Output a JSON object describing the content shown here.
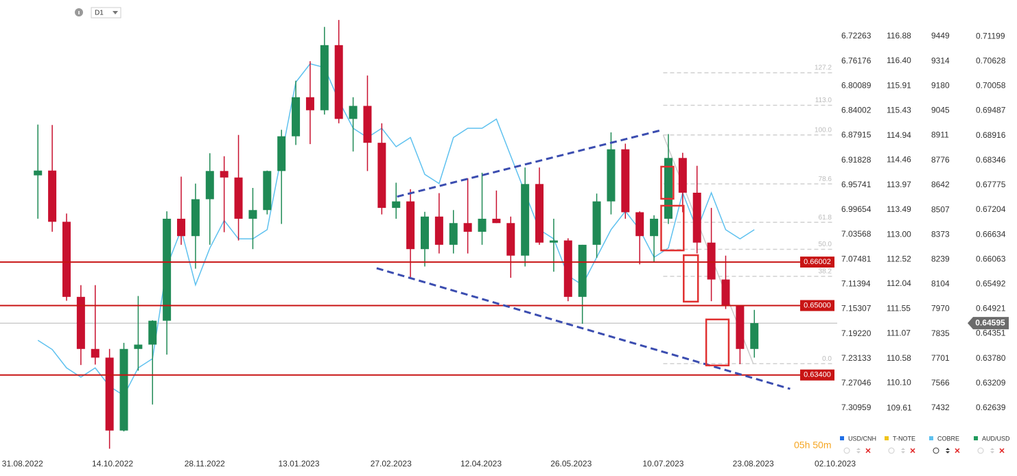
{
  "chart_data": {
    "type": "candlestick",
    "timeframe": "D1",
    "timer": "05h 50m",
    "xlim": [
      "20.08.2022",
      "03.10.2023"
    ],
    "xticks": [
      "31.08.2022",
      "14.10.2022",
      "28.11.2022",
      "13.01.2023",
      "27.02.2023",
      "12.04.2023",
      "26.05.2023",
      "10.07.2023",
      "23.08.2023",
      "02.10.2023"
    ],
    "x": [
      "05.09.2022",
      "12.09.2022",
      "19.09.2022",
      "26.09.2022",
      "03.10.2022",
      "10.10.2022",
      "17.10.2022",
      "24.10.2022",
      "31.10.2022",
      "07.11.2022",
      "14.11.2022",
      "21.11.2022",
      "28.11.2022",
      "05.12.2022",
      "12.12.2022",
      "19.12.2022",
      "26.12.2022",
      "02.01.2023",
      "09.01.2023",
      "16.01.2023",
      "23.01.2023",
      "30.01.2023",
      "06.02.2023",
      "13.02.2023",
      "20.02.2023",
      "27.02.2023",
      "06.03.2023",
      "13.03.2023",
      "20.03.2023",
      "27.03.2023",
      "03.04.2023",
      "10.04.2023",
      "17.04.2023",
      "24.04.2023",
      "01.05.2023",
      "08.05.2023",
      "15.05.2023",
      "22.05.2023",
      "29.05.2023",
      "05.06.2023",
      "12.06.2023",
      "19.06.2023",
      "26.06.2023",
      "03.07.2023",
      "10.07.2023",
      "17.07.2023",
      "24.07.2023",
      "31.07.2023",
      "07.08.2023",
      "14.08.2023",
      "21.08.2023"
    ],
    "axes": [
      {
        "name": "USD/CNH",
        "color": "#1f6fe6",
        "ylim": [
          6.6652,
          7.38
        ],
        "yticks": [
          6.72263,
          6.76176,
          6.80089,
          6.84002,
          6.87915,
          6.91828,
          6.95741,
          6.99654,
          7.03568,
          7.07481,
          7.11394,
          7.15307,
          {
            "value": 7.1922,
            "label": "7.19220"
          },
          7.23133,
          7.27046,
          7.30959
        ]
      },
      {
        "name": "T-NOTE",
        "color": "#f0c419",
        "ylim": [
          117.59,
          108.74
        ],
        "yticks": [
          116.88,
          {
            "value": 116.4,
            "label": "116.40"
          },
          115.91,
          115.43,
          114.94,
          114.46,
          113.97,
          113.49,
          {
            "value": 113,
            "label": "113.00"
          },
          112.52,
          112.04,
          111.55,
          111.07,
          110.58,
          {
            "value": 110.1,
            "label": "110.10"
          },
          109.61
        ]
      },
      {
        "name": "COBRE",
        "color": "#5ec1ef",
        "ylim": [
          9646,
          7190
        ],
        "yticks": [
          9449,
          9314,
          9180,
          9045,
          8911,
          8776,
          8642,
          8507,
          8373,
          8239,
          8104,
          7970,
          7835,
          7701,
          7566,
          7432
        ],
        "values": [
          7800,
          7750,
          7650,
          7600,
          7650,
          7550,
          7500,
          7650,
          7700,
          8200,
          8400,
          8100,
          8300,
          8450,
          8350,
          8350,
          8400,
          8800,
          9200,
          9300,
          9280,
          9100,
          8950,
          8900,
          8950,
          8850,
          8900,
          8700,
          8650,
          8900,
          8950,
          8950,
          9000,
          8800,
          8600,
          8400,
          8350,
          8150,
          8100,
          8250,
          8400,
          8500,
          8400,
          8250,
          8300,
          8600,
          8400,
          8600,
          8400,
          8350,
          8400
        ]
      },
      {
        "name": "AUD/USD",
        "color": "#1f9a5c",
        "ylim": [
          0.7204,
          0.6161
        ],
        "up_color": "#1f8a55",
        "down_color": "#c8102e",
        "yticks": [
          0.71199,
          0.70628,
          0.70058,
          0.69487,
          0.68916,
          0.68346,
          0.67775,
          0.67204,
          0.66634,
          0.66063,
          0.65492,
          0.64921,
          0.64351,
          {
            "value": 0.6378,
            "label": "0.63780"
          },
          0.63209,
          0.62639
        ],
        "open": [
          0.68,
          0.6811,
          0.6693,
          0.652,
          0.64,
          0.638,
          0.6212,
          0.64,
          0.641,
          0.6465,
          0.67,
          0.666,
          0.6745,
          0.681,
          0.6795,
          0.67,
          0.672,
          0.681,
          0.689,
          0.698,
          0.695,
          0.71,
          0.693,
          0.696,
          0.6875,
          0.6725,
          0.674,
          0.663,
          0.6705,
          0.664,
          0.669,
          0.667,
          0.67,
          0.669,
          0.6615,
          0.678,
          0.6645,
          0.665,
          0.652,
          0.664,
          0.674,
          0.686,
          0.6715,
          0.666,
          0.67,
          0.684,
          0.676,
          0.6645,
          0.656,
          0.65,
          0.64
        ],
        "high": [
          0.6917,
          0.6916,
          0.6712,
          0.6547,
          0.6547,
          0.64,
          0.6414,
          0.6522,
          0.6466,
          0.6717,
          0.6797,
          0.6781,
          0.6851,
          0.6844,
          0.6893,
          0.6771,
          0.6811,
          0.6905,
          0.7018,
          0.7063,
          0.7142,
          0.7158,
          0.698,
          0.703,
          0.692,
          0.6783,
          0.6768,
          0.6716,
          0.6759,
          0.672,
          0.6793,
          0.6806,
          0.6765,
          0.6705,
          0.6818,
          0.6818,
          0.67,
          0.6655,
          0.664,
          0.6758,
          0.6899,
          0.6873,
          0.6717,
          0.6708,
          0.6895,
          0.6852,
          0.6822,
          0.6725,
          0.6615,
          0.65,
          0.649
        ],
        "low": [
          0.67,
          0.667,
          0.6511,
          0.6363,
          0.6364,
          0.617,
          0.621,
          0.635,
          0.6272,
          0.6387,
          0.664,
          0.6585,
          0.664,
          0.6669,
          0.665,
          0.663,
          0.671,
          0.6688,
          0.687,
          0.6872,
          0.694,
          0.692,
          0.6855,
          0.681,
          0.671,
          0.67,
          0.6565,
          0.659,
          0.662,
          0.662,
          0.662,
          0.664,
          0.669,
          0.6564,
          0.659,
          0.664,
          0.6578,
          0.651,
          0.6458,
          0.661,
          0.671,
          0.67,
          0.6595,
          0.66,
          0.6688,
          0.6715,
          0.662,
          0.651,
          0.6492,
          0.6365,
          0.638
        ],
        "close": [
          0.6811,
          0.6693,
          0.652,
          0.64,
          0.638,
          0.6212,
          0.64,
          0.641,
          0.6465,
          0.67,
          0.666,
          0.6745,
          0.681,
          0.6795,
          0.67,
          0.672,
          0.681,
          0.689,
          0.698,
          0.695,
          0.71,
          0.693,
          0.696,
          0.6875,
          0.6725,
          0.674,
          0.663,
          0.6705,
          0.664,
          0.669,
          0.667,
          0.67,
          0.669,
          0.6615,
          0.678,
          0.6645,
          0.665,
          0.652,
          0.664,
          0.674,
          0.686,
          0.6715,
          0.666,
          0.67,
          0.684,
          0.676,
          0.6645,
          0.656,
          0.65,
          0.64,
          0.64595
        ]
      }
    ],
    "current_price": 0.64595,
    "level_color": "#c81414",
    "levels": [
      0.66002,
      {
        "value": 0.65,
        "label": "0.65000"
      },
      {
        "value": 0.634,
        "label": "0.63400"
      }
    ],
    "fib": {
      "x": [
        "10.07.2023",
        "23.08.2023"
      ],
      "high": 0.6893,
      "low": 0.6366,
      "levels": [
        {
          "value": 0,
          "label": "0.0"
        },
        38.2,
        {
          "value": 50,
          "label": "50.0"
        },
        61.8,
        78.6,
        {
          "value": 100,
          "label": "100.0"
        },
        {
          "value": 113,
          "label": "113.0"
        },
        127.2
      ]
    },
    "trend_color": "#3b4db0",
    "trendlines": [
      {
        "x": [
          "02.03.2023",
          "09.07.2023"
        ],
        "y": [
          0.6751,
          0.6904
        ]
      },
      {
        "x": [
          "20.02.2023",
          "10.09.2023"
        ],
        "y": [
          0.6586,
          0.6308
        ]
      }
    ],
    "boxes": [
      {
        "x": [
          "09.07.2023",
          "15.07.2023"
        ],
        "y": [
          0.682,
          0.6746
        ]
      },
      {
        "x": [
          "09.07.2023",
          "20.07.2023"
        ],
        "y": [
          0.673,
          0.6627
        ]
      },
      {
        "x": [
          "20.07.2023",
          "27.07.2023"
        ],
        "y": [
          0.6616,
          0.6509
        ]
      },
      {
        "x": [
          "31.07.2023",
          "11.08.2023"
        ],
        "y": [
          0.6468,
          0.6362
        ]
      }
    ]
  }
}
